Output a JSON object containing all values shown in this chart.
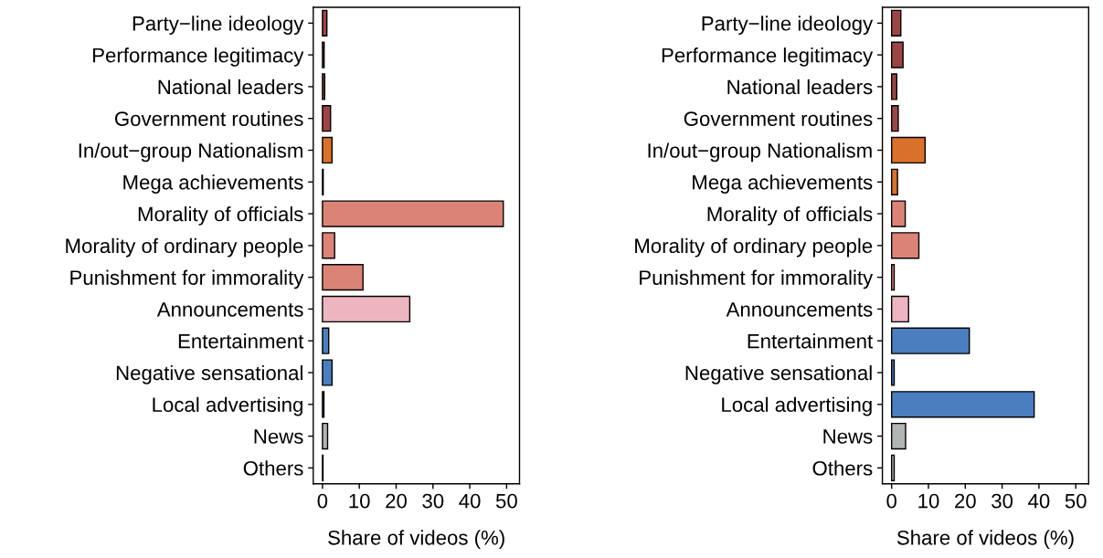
{
  "chart_data": [
    {
      "type": "bar",
      "orientation": "horizontal",
      "xlabel": "Share of videos (%)",
      "categories": [
        "Party−line ideology",
        "Performance legitimacy",
        "National leaders",
        "Government routines",
        "In/out−group Nationalism",
        "Mega achievements",
        "Morality of officials",
        "Morality of ordinary people",
        "Punishment for immorality",
        "Announcements",
        "Entertainment",
        "Negative sensational",
        "Local advertising",
        "News",
        "Others"
      ],
      "values": [
        1.2,
        0.45,
        0.6,
        2.2,
        2.6,
        0.2,
        49.1,
        3.3,
        11.0,
        23.7,
        1.7,
        2.6,
        0.4,
        1.4,
        0.15
      ],
      "colors": [
        "#9b4546",
        "#9b4546",
        "#9b4546",
        "#9b4546",
        "#d9712a",
        "#d9712a",
        "#dc8377",
        "#dc8377",
        "#dc8377",
        "#edb5c0",
        "#4a7ebf",
        "#4a7ebf",
        "#4a7ebf",
        "#b0b5b3",
        "#b0b5b3"
      ],
      "xlim": [
        -2.5,
        53.5
      ],
      "xticks": [
        0,
        10,
        20,
        30,
        40,
        50
      ],
      "grid": false
    },
    {
      "type": "bar",
      "orientation": "horizontal",
      "xlabel": "Share of videos (%)",
      "categories": [
        "Party−line ideology",
        "Performance legitimacy",
        "National leaders",
        "Government routines",
        "In/out−group Nationalism",
        "Mega achievements",
        "Morality of officials",
        "Morality of ordinary people",
        "Punishment for immorality",
        "Announcements",
        "Entertainment",
        "Negative sensational",
        "Local advertising",
        "News",
        "Others"
      ],
      "values": [
        2.5,
        3.1,
        1.4,
        1.8,
        9.1,
        1.6,
        3.7,
        7.4,
        0.7,
        4.6,
        21.1,
        0.7,
        38.7,
        3.8,
        0.7
      ],
      "colors": [
        "#9b4546",
        "#9b4546",
        "#9b4546",
        "#9b4546",
        "#d9712a",
        "#d9712a",
        "#dc8377",
        "#dc8377",
        "#dc8377",
        "#edb5c0",
        "#4a7ebf",
        "#4a7ebf",
        "#4a7ebf",
        "#b0b5b3",
        "#b0b5b3"
      ],
      "xlim": [
        -2.5,
        53.5
      ],
      "xticks": [
        0,
        10,
        20,
        30,
        40,
        50
      ],
      "grid": false
    }
  ]
}
